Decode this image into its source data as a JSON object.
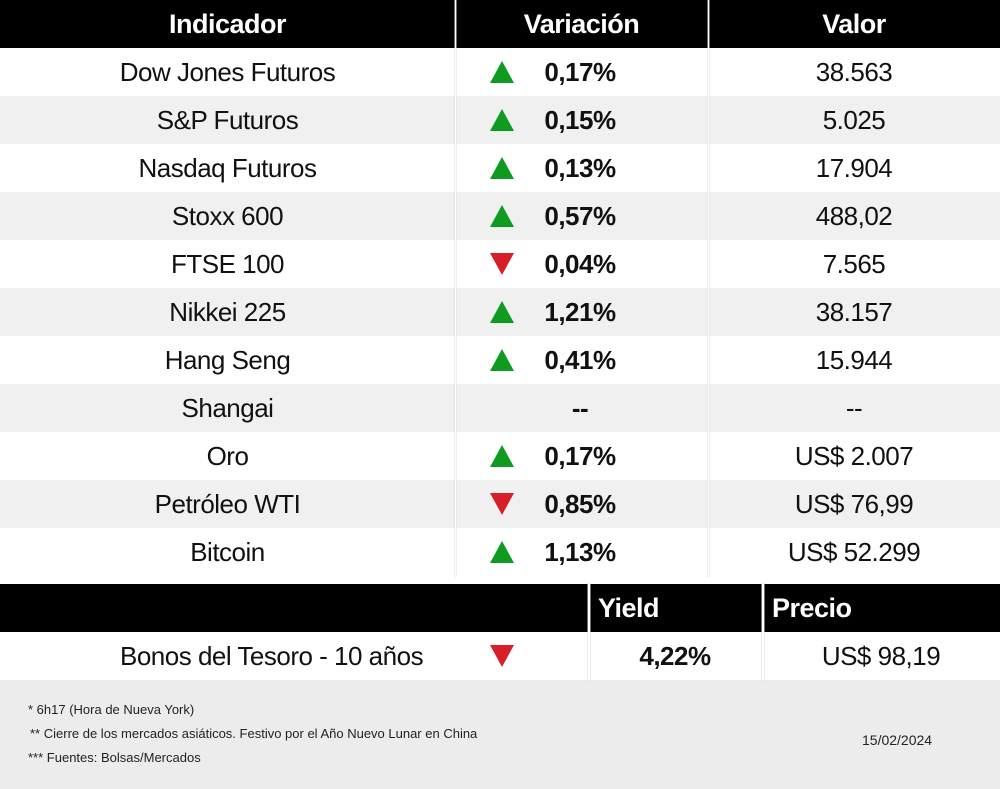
{
  "table": {
    "header": [
      "Indicador",
      "Variación",
      "Valor"
    ],
    "rows": [
      {
        "name": "Dow Jones Futuros",
        "trend": "up",
        "change": "0,17%",
        "value": "38.563"
      },
      {
        "name": "S&P Futuros",
        "trend": "up",
        "change": "0,15%",
        "value": "5.025"
      },
      {
        "name": "Nasdaq Futuros",
        "trend": "up",
        "change": "0,13%",
        "value": "17.904"
      },
      {
        "name": "Stoxx 600",
        "trend": "up",
        "change": "0,57%",
        "value": "488,02"
      },
      {
        "name": "FTSE 100",
        "trend": "down",
        "change": "0,04%",
        "value": "7.565"
      },
      {
        "name": "Nikkei 225",
        "trend": "up",
        "change": "1,21%",
        "value": "38.157"
      },
      {
        "name": "Hang Seng",
        "trend": "up",
        "change": "0,41%",
        "value": "15.944"
      },
      {
        "name": "Shangai",
        "trend": null,
        "change": "--",
        "value": "--"
      },
      {
        "name": "Oro",
        "trend": "up",
        "change": "0,17%",
        "value": "US$ 2.007"
      },
      {
        "name": "Petróleo WTI",
        "trend": "down",
        "change": "0,85%",
        "value": "US$ 76,99"
      },
      {
        "name": "Bitcoin",
        "trend": "up",
        "change": "1,13%",
        "value": "US$ 52.299"
      }
    ]
  },
  "bonds": {
    "header": [
      "Yield",
      "Precio"
    ],
    "row": {
      "name": "Bonos del Tesoro - 10 años",
      "trend": "down",
      "yield": "4,22%",
      "price": "US$ 98,19"
    }
  },
  "footer": {
    "notes": [
      "* 6h17 (Hora de Nueva York)",
      "** Cierre de los mercados asiáticos. Festivo por el Año Nuevo Lunar en  China",
      "*** Fuentes: Bolsas/Mercados"
    ],
    "date": "15/02/2024"
  }
}
